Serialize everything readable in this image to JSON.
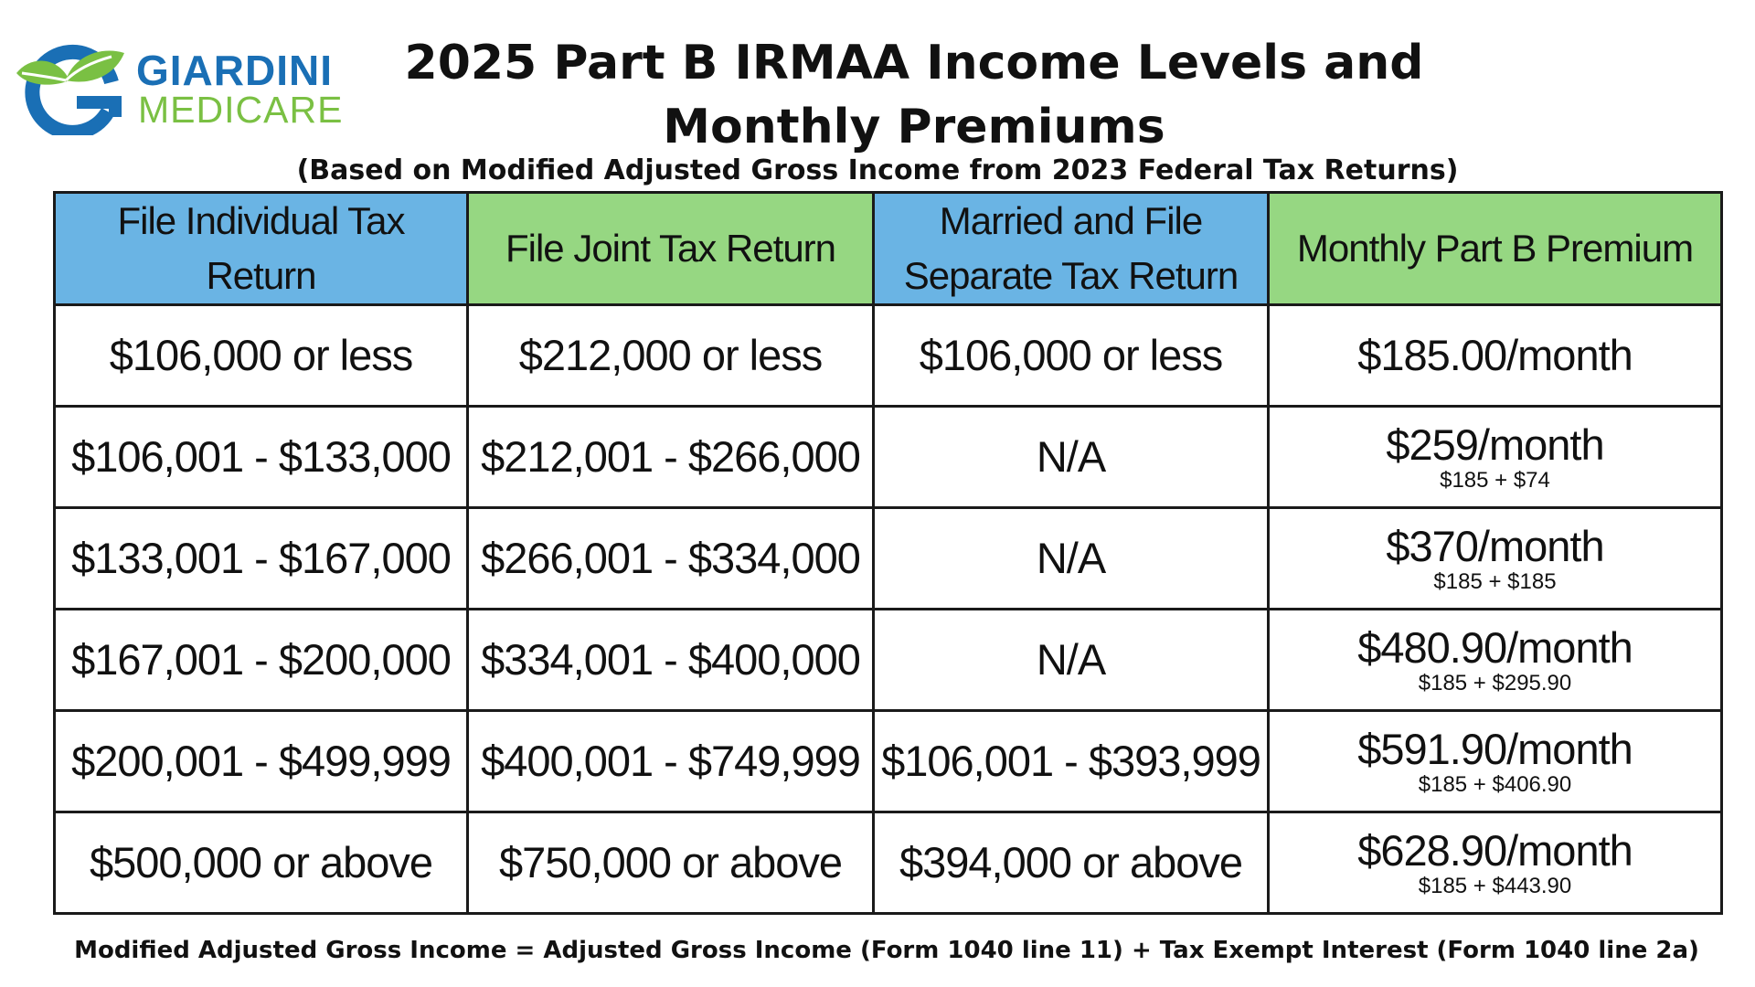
{
  "logo": {
    "name_line1": "GIARDINI",
    "name_line2": "MEDICARE"
  },
  "title": "2025 Part B IRMAA Income Levels and Monthly Premiums",
  "subtitle": "(Based on Modified Adjusted Gross Income from 2023 Federal Tax Returns)",
  "table": {
    "headers": [
      "File Individual Tax Return",
      "File Joint Tax Return",
      "Married and File Separate Tax Return",
      "Monthly Part B Premium"
    ],
    "rows": [
      {
        "individual": "$106,000 or less",
        "joint": "$212,000 or less",
        "separate": "$106,000 or less",
        "premium": "$185.00/month",
        "breakdown": ""
      },
      {
        "individual": "$106,001 - $133,000",
        "joint": "$212,001 - $266,000",
        "separate": "N/A",
        "premium": "$259/month",
        "breakdown": "$185 + $74"
      },
      {
        "individual": "$133,001 - $167,000",
        "joint": "$266,001 - $334,000",
        "separate": "N/A",
        "premium": "$370/month",
        "breakdown": "$185 + $185"
      },
      {
        "individual": "$167,001 - $200,000",
        "joint": "$334,001 - $400,000",
        "separate": "N/A",
        "premium": "$480.90/month",
        "breakdown": "$185 + $295.90"
      },
      {
        "individual": "$200,001 - $499,999",
        "joint": "$400,001 - $749,999",
        "separate": "$106,001 - $393,999",
        "premium": "$591.90/month",
        "breakdown": "$185 + $406.90"
      },
      {
        "individual": "$500,000 or above",
        "joint": "$750,000 or above",
        "separate": "$394,000 or above",
        "premium": "$628.90/month",
        "breakdown": "$185 + $443.90"
      }
    ]
  },
  "footer": "Modified Adjusted Gross Income = Adjusted Gross Income (Form 1040 line 11) + Tax Exempt Interest (Form 1040 line 2a)",
  "colors": {
    "header_blue": "#6ab4e4",
    "header_green": "#96d782",
    "logo_blue": "#1a6fb5",
    "logo_green": "#7ac043"
  }
}
